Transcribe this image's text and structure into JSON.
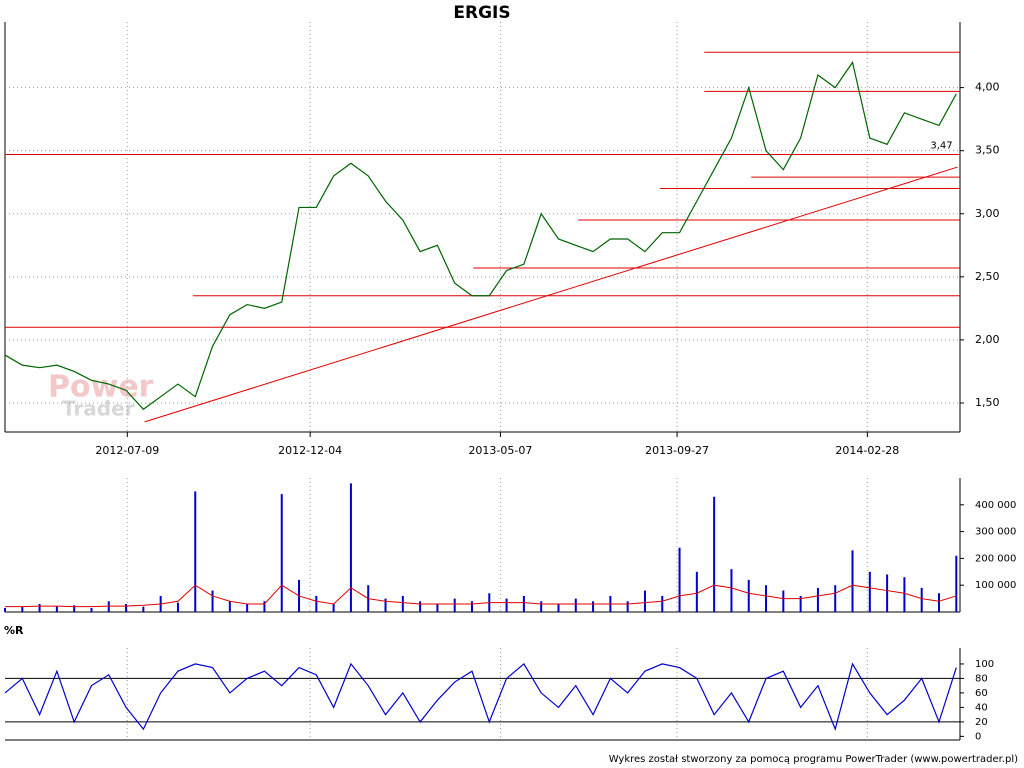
{
  "chart_data": [
    {
      "type": "line",
      "title": "ERGIS",
      "color": "#006400",
      "x": [
        "2012-04-01",
        "2012-04-15",
        "2012-04-29",
        "2012-05-13",
        "2012-05-27",
        "2012-06-10",
        "2012-06-24",
        "2012-07-08",
        "2012-07-22",
        "2012-08-05",
        "2012-08-19",
        "2012-09-02",
        "2012-09-16",
        "2012-09-30",
        "2012-10-14",
        "2012-10-28",
        "2012-11-11",
        "2012-11-25",
        "2012-12-09",
        "2012-12-23",
        "2013-01-06",
        "2013-01-20",
        "2013-02-03",
        "2013-02-17",
        "2013-03-03",
        "2013-03-17",
        "2013-03-31",
        "2013-04-14",
        "2013-04-28",
        "2013-05-12",
        "2013-05-26",
        "2013-06-09",
        "2013-06-23",
        "2013-07-07",
        "2013-07-21",
        "2013-08-04",
        "2013-08-18",
        "2013-09-01",
        "2013-09-15",
        "2013-09-29",
        "2013-10-13",
        "2013-10-27",
        "2013-11-10",
        "2013-11-24",
        "2013-12-08",
        "2013-12-22",
        "2014-01-05",
        "2014-01-19",
        "2014-02-02",
        "2014-02-16",
        "2014-03-02",
        "2014-03-16",
        "2014-03-30",
        "2014-04-13",
        "2014-04-27",
        "2014-05-11"
      ],
      "values": [
        1.88,
        1.8,
        1.78,
        1.8,
        1.75,
        1.68,
        1.65,
        1.6,
        1.45,
        1.55,
        1.65,
        1.55,
        1.95,
        2.2,
        2.28,
        2.25,
        2.3,
        3.05,
        3.05,
        3.3,
        3.4,
        3.3,
        3.1,
        2.95,
        2.7,
        2.75,
        2.45,
        2.35,
        2.35,
        2.55,
        2.6,
        3.0,
        2.8,
        2.75,
        2.7,
        2.8,
        2.8,
        2.7,
        2.85,
        2.85,
        3.1,
        3.35,
        3.6,
        4.0,
        3.5,
        3.35,
        3.6,
        4.1,
        4.0,
        4.2,
        3.6,
        3.55,
        3.8,
        3.75,
        3.7,
        3.95
      ],
      "xlim": [
        "2012-04-01",
        "2014-05-14"
      ],
      "xticks": [
        "2012-07-09",
        "2012-12-04",
        "2013-05-07",
        "2013-09-27",
        "2014-02-28"
      ],
      "ylim": [
        1.27,
        4.52
      ],
      "yticks": [
        {
          "value": 1.5,
          "label": "1,50"
        },
        {
          "value": 2,
          "label": "2,00"
        },
        {
          "value": 2.5,
          "label": "2,50"
        },
        {
          "value": 3,
          "label": "3,00"
        },
        {
          "value": 3.5,
          "label": "3,50"
        },
        {
          "value": 4,
          "label": "4,00"
        }
      ],
      "grid": true,
      "levels_color": "#e00000",
      "levels": [
        {
          "value": 3.47,
          "from": "2012-04-01"
        },
        {
          "value": 2.1,
          "from": "2012-04-01"
        },
        {
          "value": 2.35,
          "from": "2012-08-31"
        },
        {
          "value": 2.57,
          "from": "2013-04-15"
        },
        {
          "value": 2.95,
          "from": "2013-07-09"
        },
        {
          "value": 3.2,
          "from": "2013-09-13"
        },
        {
          "value": 3.29,
          "from": "2013-11-26"
        },
        {
          "value": 3.97,
          "from": "2013-10-19"
        },
        {
          "value": 4.28,
          "from": "2013-10-19"
        }
      ],
      "trend": {
        "x": [
          "2012-07-23",
          "2014-05-12"
        ],
        "values": [
          1.35,
          3.37
        ]
      },
      "annotation": {
        "x": "2014-04-20",
        "value": 3.47,
        "label": "3,47"
      }
    },
    {
      "type": "bar",
      "color": "#0000cc",
      "values": [
        15000,
        20000,
        30000,
        20000,
        25000,
        15000,
        40000,
        30000,
        20000,
        60000,
        35000,
        450000,
        80000,
        40000,
        30000,
        40000,
        440000,
        120000,
        60000,
        30000,
        480000,
        100000,
        50000,
        60000,
        40000,
        30000,
        50000,
        40000,
        70000,
        50000,
        60000,
        40000,
        30000,
        50000,
        40000,
        60000,
        40000,
        80000,
        60000,
        240000,
        150000,
        430000,
        160000,
        120000,
        100000,
        80000,
        60000,
        90000,
        100000,
        230000,
        150000,
        140000,
        130000,
        90000,
        70000,
        210000
      ],
      "avg": {
        "color": "#e00000",
        "values": [
          20000,
          20000,
          22000,
          22000,
          20000,
          20000,
          22000,
          22000,
          25000,
          30000,
          40000,
          100000,
          60000,
          40000,
          30000,
          30000,
          100000,
          60000,
          40000,
          30000,
          90000,
          50000,
          40000,
          35000,
          30000,
          30000,
          30000,
          30000,
          35000,
          35000,
          35000,
          30000,
          30000,
          30000,
          30000,
          30000,
          30000,
          35000,
          40000,
          60000,
          70000,
          100000,
          90000,
          70000,
          60000,
          50000,
          50000,
          60000,
          70000,
          100000,
          90000,
          80000,
          70000,
          50000,
          40000,
          60000
        ]
      },
      "ylim": [
        0,
        500000
      ],
      "yticks": [
        {
          "value": 100000,
          "label": "100 000"
        },
        {
          "value": 200000,
          "label": "200 000"
        },
        {
          "value": 300000,
          "label": "300 000"
        },
        {
          "value": 400000,
          "label": "400 000"
        }
      ]
    },
    {
      "type": "line",
      "title": "%R",
      "color": "#0000cc",
      "values": [
        60,
        80,
        30,
        90,
        20,
        70,
        85,
        40,
        10,
        60,
        90,
        100,
        95,
        60,
        80,
        90,
        70,
        95,
        85,
        40,
        100,
        70,
        30,
        60,
        20,
        50,
        75,
        90,
        20,
        80,
        100,
        60,
        40,
        70,
        30,
        80,
        60,
        90,
        100,
        95,
        80,
        30,
        60,
        20,
        80,
        90,
        40,
        70,
        10,
        100,
        60,
        30,
        50,
        80,
        20,
        95
      ],
      "ylim": [
        -5,
        122
      ],
      "yticks": [
        0,
        20,
        40,
        60,
        80,
        100
      ],
      "bands": [
        20,
        80
      ]
    }
  ],
  "watermark": [
    "Power",
    "Trader"
  ],
  "footer": "Wykres został stworzony za pomocą programu PowerTrader (www.powertrader.pl)"
}
